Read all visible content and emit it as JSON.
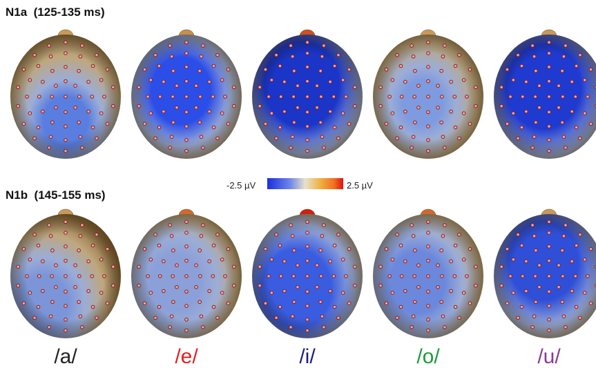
{
  "panels": [
    {
      "title": "N1a  (125-135 ms)"
    },
    {
      "title": "N1b  (145-155 ms)"
    }
  ],
  "colorbar": {
    "min_label": "-2.5 µV",
    "max_label": "2.5 µV"
  },
  "conditions": [
    "/a/",
    "/e/",
    "/i/",
    "/o/",
    "/u/"
  ]
}
